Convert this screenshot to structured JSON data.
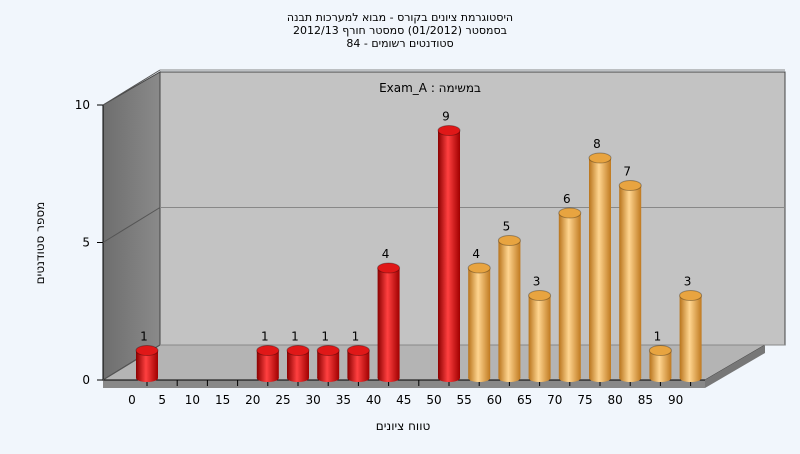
{
  "chart_data": {
    "type": "bar",
    "title": [
      "היסטוגרמת ציונים בקורס - מבוא למערכות תבנה",
      "בסמסטר  (01/2012)  סמסטר חורף 2012/13",
      "סטודנטים רשומים - 84"
    ],
    "subtitle": "Exam_A : במשימה",
    "x_label": "טווח ציונים",
    "y_label": "מספר סטודנטים",
    "categories": [
      "0",
      "5",
      "10",
      "15",
      "20",
      "25",
      "30",
      "35",
      "40",
      "45",
      "50",
      "55",
      "60",
      "65",
      "70",
      "75",
      "80",
      "85",
      "90"
    ],
    "values": [
      1,
      0,
      0,
      0,
      1,
      1,
      1,
      1,
      4,
      0,
      9,
      4,
      5,
      3,
      6,
      8,
      7,
      1,
      3
    ],
    "colors": [
      "#e01818",
      "#e01818",
      "#e01818",
      "#e01818",
      "#e01818",
      "#e01818",
      "#e01818",
      "#e01818",
      "#e01818",
      "#e01818",
      "#e01818",
      "#e8a440",
      "#e8a440",
      "#e8a440",
      "#e8a440",
      "#e8a440",
      "#e8a440",
      "#e8a440",
      "#e8a440"
    ],
    "ylim": [
      0,
      10
    ],
    "yticks": [
      0,
      5,
      10
    ],
    "grid": true
  }
}
